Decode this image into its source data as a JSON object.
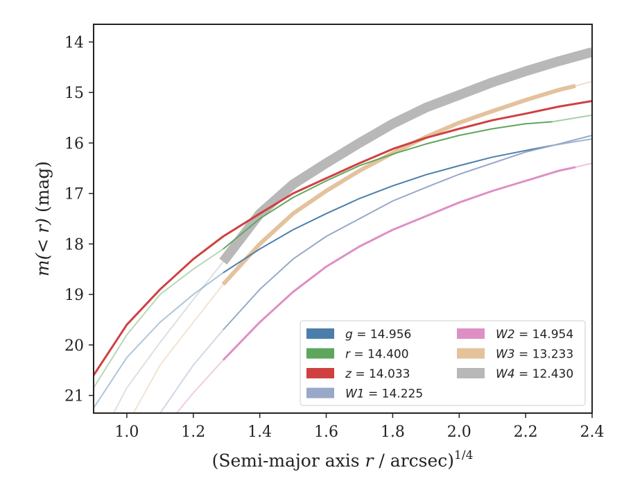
{
  "chart_data": {
    "type": "line",
    "title": "",
    "xlabel": "(Semi-major axis r / arcsec)^(1/4)",
    "xlabel_parts": {
      "main": "(Semi-major axis ",
      "var": "r",
      "rest": " / arcsec)",
      "sup": "1/4"
    },
    "ylabel": "m(<r) (mag)",
    "ylabel_parts": {
      "italic_part": "m(< r)",
      "rest": " (mag)"
    },
    "xlim": [
      0.9,
      2.4
    ],
    "ylim": [
      21.35,
      13.65
    ],
    "y_inverted": true,
    "xticks": [
      1.0,
      1.2,
      1.4,
      1.6,
      1.8,
      2.0,
      2.2,
      2.4
    ],
    "xtick_labels": [
      "1.0",
      "1.2",
      "1.4",
      "1.6",
      "1.8",
      "2.0",
      "2.2",
      "2.4"
    ],
    "yticks": [
      14,
      15,
      16,
      17,
      18,
      19,
      20,
      21
    ],
    "ytick_labels": [
      "14",
      "15",
      "16",
      "17",
      "18",
      "19",
      "20",
      "21"
    ],
    "grid": false,
    "legend_position": "lower-right",
    "legend_columns": 2,
    "series": [
      {
        "name": "g = 14.956",
        "legend_var": "g",
        "legend_value": "14.956",
        "color": "#4c7eac",
        "solid_x": [
          1.29,
          2.28
        ],
        "band_width": 2,
        "x": [
          0.9,
          1.0,
          1.1,
          1.2,
          1.29,
          1.4,
          1.5,
          1.6,
          1.7,
          1.8,
          1.9,
          2.0,
          2.1,
          2.2,
          2.28,
          2.4
        ],
        "y": [
          21.25,
          20.25,
          19.55,
          19.0,
          18.57,
          18.1,
          17.72,
          17.4,
          17.1,
          16.85,
          16.63,
          16.45,
          16.28,
          16.15,
          16.05,
          15.92
        ]
      },
      {
        "name": "r = 14.400",
        "legend_var": "r",
        "legend_value": "14.400",
        "color": "#5ea65e",
        "solid_x": [
          1.29,
          2.28
        ],
        "band_width": 2,
        "x": [
          0.9,
          1.0,
          1.1,
          1.2,
          1.29,
          1.4,
          1.5,
          1.6,
          1.7,
          1.8,
          1.9,
          2.0,
          2.1,
          2.2,
          2.28,
          2.4
        ],
        "y": [
          20.85,
          19.8,
          19.0,
          18.5,
          18.1,
          17.5,
          17.08,
          16.75,
          16.45,
          16.22,
          16.02,
          15.85,
          15.72,
          15.62,
          15.58,
          15.45
        ]
      },
      {
        "name": "z = 14.033",
        "legend_var": "z",
        "legend_value": "14.033",
        "color": "#d04040",
        "solid_x": [
          0.9,
          2.4
        ],
        "band_width": 3,
        "x": [
          0.9,
          1.0,
          1.1,
          1.2,
          1.29,
          1.4,
          1.5,
          1.6,
          1.7,
          1.8,
          1.9,
          2.0,
          2.1,
          2.2,
          2.3,
          2.4
        ],
        "y": [
          20.6,
          19.6,
          18.9,
          18.3,
          17.85,
          17.4,
          17.0,
          16.7,
          16.4,
          16.12,
          15.9,
          15.72,
          15.55,
          15.42,
          15.28,
          15.17
        ]
      },
      {
        "name": "W1 = 14.225",
        "legend_var": "W1",
        "legend_value": "14.225",
        "color": "#98a8c8",
        "solid_x": [
          1.29,
          2.4
        ],
        "band_width": 2,
        "x": [
          1.1,
          1.2,
          1.29,
          1.4,
          1.5,
          1.6,
          1.7,
          1.8,
          1.9,
          2.0,
          2.1,
          2.2,
          2.3,
          2.4
        ],
        "y": [
          21.35,
          20.4,
          19.7,
          18.9,
          18.3,
          17.85,
          17.5,
          17.15,
          16.88,
          16.62,
          16.4,
          16.18,
          16.02,
          15.85
        ]
      },
      {
        "name": "W2 = 14.954",
        "legend_var": "W2",
        "legend_value": "14.954",
        "color": "#de8fc4",
        "solid_x": [
          1.29,
          2.35
        ],
        "band_width": 3,
        "x": [
          1.15,
          1.2,
          1.29,
          1.4,
          1.5,
          1.6,
          1.7,
          1.8,
          1.9,
          2.0,
          2.1,
          2.2,
          2.3,
          2.35,
          2.4
        ],
        "y": [
          21.35,
          20.95,
          20.3,
          19.55,
          18.95,
          18.45,
          18.05,
          17.72,
          17.45,
          17.18,
          16.95,
          16.75,
          16.55,
          16.48,
          16.4
        ]
      },
      {
        "name": "W3 = 13.233",
        "legend_var": "W3",
        "legend_value": "13.233",
        "color": "#e3c29c",
        "solid_x": [
          1.29,
          2.35
        ],
        "band_width": 6,
        "x": [
          1.02,
          1.1,
          1.2,
          1.29,
          1.4,
          1.5,
          1.6,
          1.7,
          1.8,
          1.9,
          2.0,
          2.1,
          2.2,
          2.3,
          2.35,
          2.4
        ],
        "y": [
          21.35,
          20.4,
          19.55,
          18.8,
          18.0,
          17.4,
          16.95,
          16.55,
          16.2,
          15.88,
          15.6,
          15.37,
          15.15,
          14.95,
          14.87,
          14.78
        ]
      },
      {
        "name": "W4 = 12.430",
        "legend_var": "W4",
        "legend_value": "12.430",
        "color": "#b8b8b8",
        "solid_x": [
          1.29,
          2.4
        ],
        "band_width": 14,
        "x": [
          0.96,
          1.0,
          1.1,
          1.2,
          1.29,
          1.4,
          1.5,
          1.6,
          1.7,
          1.8,
          1.9,
          2.0,
          2.1,
          2.2,
          2.3,
          2.4
        ],
        "y": [
          21.35,
          20.85,
          19.95,
          19.1,
          18.35,
          17.4,
          16.82,
          16.4,
          16.0,
          15.62,
          15.3,
          15.05,
          14.8,
          14.58,
          14.38,
          14.2
        ]
      }
    ]
  }
}
